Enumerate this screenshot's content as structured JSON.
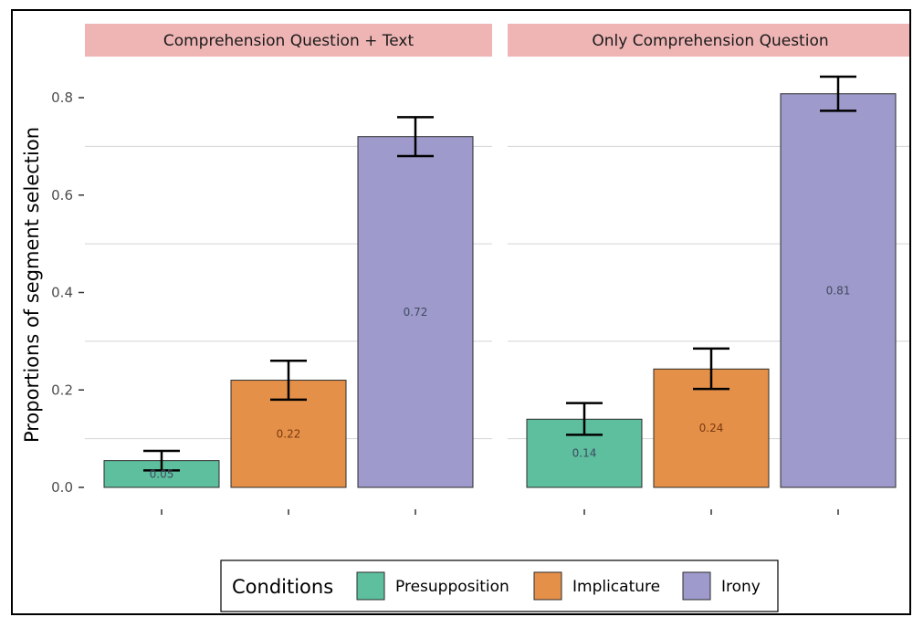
{
  "chart_data": {
    "type": "bar",
    "ylabel": "Proportions of segment selection",
    "ylim": [
      0,
      0.85
    ],
    "yticks": [
      "0.0",
      "0.2",
      "0.4",
      "0.6",
      "0.8"
    ],
    "grid": "horizontal",
    "legend": {
      "title": "Conditions",
      "placement": "bottom",
      "entries": [
        "Presupposition",
        "Implicature",
        "Irony"
      ]
    },
    "colors": {
      "Presupposition": "#5dbf9e",
      "Implicature": "#e59049",
      "Irony": "#9e9acb",
      "strip": "#efb5b5",
      "grid": "#d4d4d4"
    },
    "categories": [
      "Presupposition",
      "Implicature",
      "Irony"
    ],
    "panels": [
      {
        "title": "Comprehension Question + Text",
        "values": [
          0.05,
          0.22,
          0.72
        ],
        "bar_heights": [
          0.055,
          0.22,
          0.72
        ],
        "error_low": [
          0.035,
          0.18,
          0.68
        ],
        "error_high": [
          0.075,
          0.26,
          0.76
        ],
        "labels": [
          "0.05",
          "0.22",
          "0.72"
        ]
      },
      {
        "title": "Only Comprehension Question",
        "values": [
          0.14,
          0.24,
          0.81
        ],
        "bar_heights": [
          0.14,
          0.243,
          0.808
        ],
        "error_low": [
          0.108,
          0.202,
          0.773
        ],
        "error_high": [
          0.173,
          0.285,
          0.843
        ],
        "labels": [
          "0.14",
          "0.24",
          "0.81"
        ]
      }
    ]
  }
}
